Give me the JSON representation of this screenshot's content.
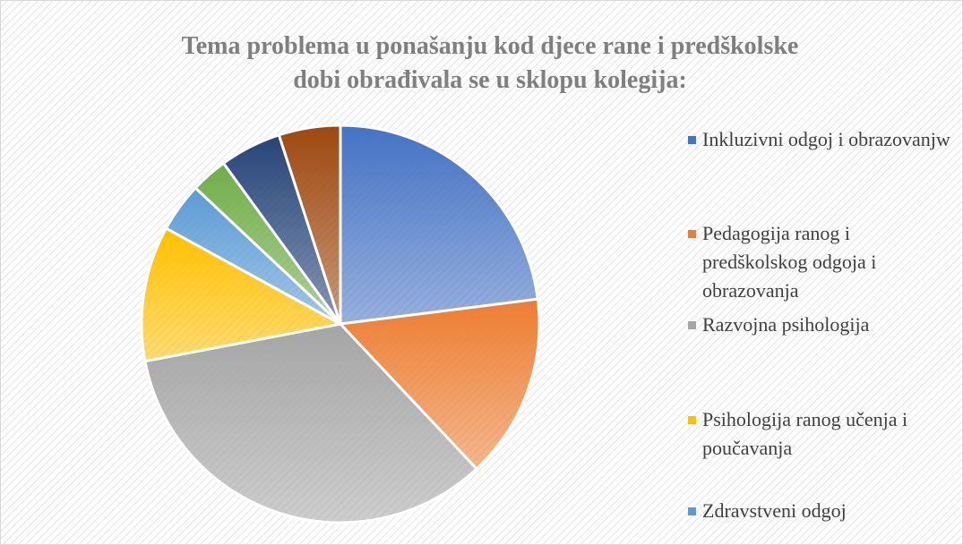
{
  "chart_data": {
    "type": "pie",
    "title": [
      "Tema problema u ponašanju kod djece rane i predškolske",
      "dobi obrađivala se u sklopu kolegija:"
    ],
    "categories": [
      "Inkluzivni odgoj i obrazovanjw",
      "Pedagogija ranog i predškolskog odgoja i obrazovanja",
      "Razvojna psihologija",
      "Psihologija ranog učenja i poučavanja",
      "Zdravstveni odgoj",
      null,
      null,
      null
    ],
    "values": [
      23,
      15,
      34,
      11,
      4,
      3,
      5,
      5
    ],
    "colors": [
      "#4472c4",
      "#ed7d31",
      "#a5a5a5",
      "#ffc000",
      "#5b9bd5",
      "#70ad47",
      "#264478",
      "#9e480e"
    ]
  }
}
